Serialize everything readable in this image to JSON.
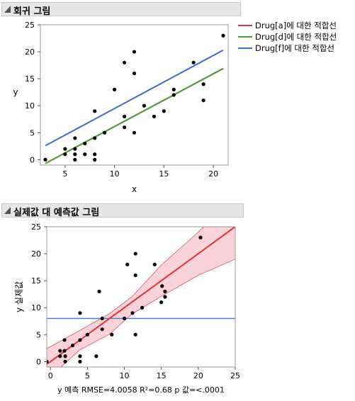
{
  "section1": {
    "title": "회귀 그림"
  },
  "section2": {
    "title": "실제값 대 예측값 그림"
  },
  "colors": {
    "drug_a": "#e0303a",
    "drug_d": "#4aa03a",
    "drug_f": "#3c6ad0",
    "band": "#f7b6c2",
    "mean_line": "#4a7fd0"
  },
  "chart_data": [
    {
      "type": "scatter",
      "title": "",
      "xlabel": "x",
      "ylabel": "y",
      "xlim": [
        2.5,
        21.5
      ],
      "ylim": [
        -1,
        25
      ],
      "x_ticks": [
        5,
        10,
        15,
        20
      ],
      "y_ticks": [
        0,
        5,
        10,
        15,
        20,
        25
      ],
      "points": [
        [
          3,
          0
        ],
        [
          5,
          2
        ],
        [
          5,
          1
        ],
        [
          6,
          4
        ],
        [
          6,
          2
        ],
        [
          6,
          1
        ],
        [
          6,
          0
        ],
        [
          7,
          3
        ],
        [
          7,
          1
        ],
        [
          8,
          9
        ],
        [
          8,
          4
        ],
        [
          8,
          1
        ],
        [
          8,
          0
        ],
        [
          9,
          5
        ],
        [
          10,
          13
        ],
        [
          11,
          18
        ],
        [
          11,
          8
        ],
        [
          11,
          6
        ],
        [
          12,
          20
        ],
        [
          12,
          16
        ],
        [
          12,
          5
        ],
        [
          13,
          10
        ],
        [
          14,
          8
        ],
        [
          15,
          9
        ],
        [
          16,
          13
        ],
        [
          16,
          12
        ],
        [
          18,
          18
        ],
        [
          19,
          14
        ],
        [
          19,
          11
        ],
        [
          21,
          23
        ]
      ],
      "series": [
        {
          "name": "Drug[a]에 대한 적합선",
          "line": [
            [
              3,
              -0.7
            ],
            [
              21,
              16.9
            ]
          ]
        },
        {
          "name": "Drug[d]에 대한 적합선",
          "line": [
            [
              3,
              -0.7
            ],
            [
              21,
              16.9
            ]
          ]
        },
        {
          "name": "Drug[f]에 대한 적합선",
          "line": [
            [
              3,
              2.6
            ],
            [
              21,
              20.3
            ]
          ]
        }
      ],
      "legend_position": "right"
    },
    {
      "type": "scatter",
      "title": "",
      "xlabel": "y 예측 RMSE=4.0058 R²=0.68 p 값=<.0001",
      "ylabel": "y 실제값",
      "xlim": [
        -0.5,
        25
      ],
      "ylim": [
        -1,
        25
      ],
      "x_ticks": [
        0,
        5,
        10,
        15,
        20,
        25
      ],
      "y_ticks": [
        0,
        5,
        10,
        15,
        20,
        25
      ],
      "points": [
        [
          -0.5,
          0
        ],
        [
          1.3,
          2
        ],
        [
          1.3,
          1
        ],
        [
          1.9,
          4
        ],
        [
          1.9,
          2
        ],
        [
          2.0,
          1
        ],
        [
          2.0,
          0
        ],
        [
          3.0,
          3
        ],
        [
          4.0,
          9
        ],
        [
          4.0,
          4
        ],
        [
          4.0,
          1
        ],
        [
          4.0,
          0
        ],
        [
          5.0,
          5
        ],
        [
          6.6,
          13
        ],
        [
          6.2,
          1
        ],
        [
          7.0,
          8
        ],
        [
          7.0,
          6
        ],
        [
          8.3,
          5
        ],
        [
          10.0,
          8
        ],
        [
          10.4,
          18
        ],
        [
          11.1,
          9
        ],
        [
          11.5,
          20
        ],
        [
          11.5,
          16
        ],
        [
          11.5,
          5
        ],
        [
          12.4,
          10
        ],
        [
          14.1,
          18
        ],
        [
          15.0,
          11
        ],
        [
          15.1,
          14
        ],
        [
          15.5,
          13
        ],
        [
          15.5,
          12
        ],
        [
          20.3,
          23
        ]
      ],
      "fit_line": [
        [
          -0.5,
          -0.5
        ],
        [
          25,
          25
        ]
      ],
      "mean_y": 8,
      "confidence_band": {
        "upper": [
          [
            -0.5,
            2.4
          ],
          [
            4,
            5.8
          ],
          [
            8,
            8.9
          ],
          [
            11,
            12.0
          ],
          [
            15,
            17.9
          ],
          [
            20,
            24.0
          ],
          [
            25,
            31.0
          ]
        ],
        "lower": [
          [
            25,
            19.0
          ],
          [
            20,
            16.0
          ],
          [
            15,
            12.1
          ],
          [
            11,
            8.8
          ],
          [
            8,
            5.1
          ],
          [
            4,
            2.2
          ],
          [
            -0.5,
            -3.4
          ]
        ]
      }
    }
  ]
}
